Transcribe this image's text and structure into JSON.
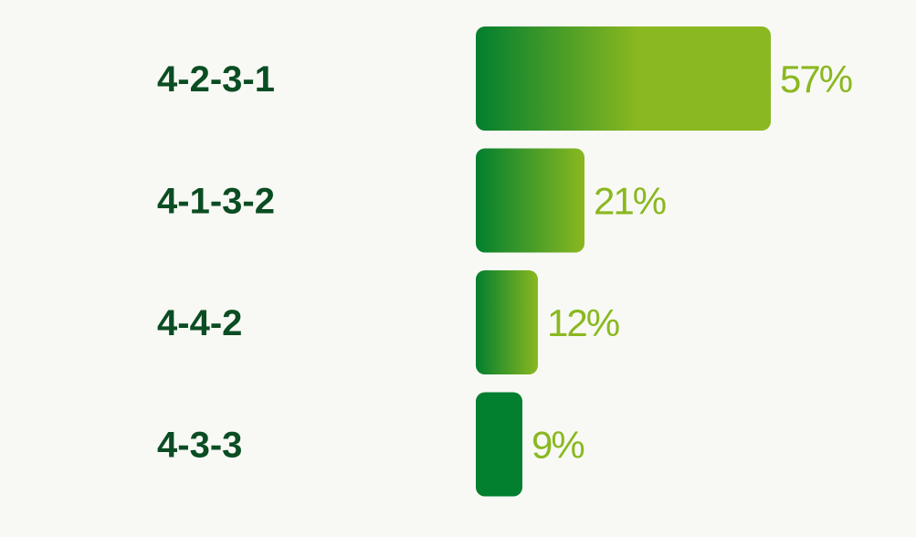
{
  "chart_data": {
    "type": "bar",
    "orientation": "horizontal",
    "categories": [
      "4-2-3-1",
      "4-1-3-2",
      "4-4-2",
      "4-3-3"
    ],
    "values": [
      57,
      21,
      12,
      9
    ],
    "value_labels": [
      "57%",
      "21%",
      "12%",
      "9%"
    ],
    "title": "",
    "xlabel": "",
    "ylabel": "",
    "xlim": [
      0,
      57
    ],
    "grid": false,
    "colors": {
      "bar_start": "#027f2f",
      "bar_end": "#8ab820",
      "category_text": "#0b4d23",
      "value_text": "#8ab820",
      "background": "#f8f9f4"
    }
  }
}
